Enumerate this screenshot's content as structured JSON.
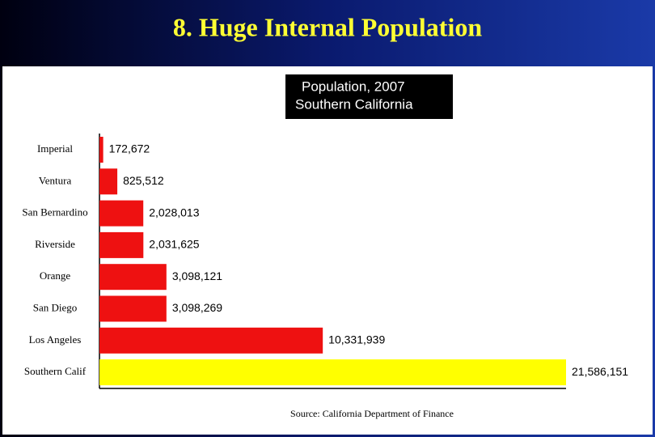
{
  "slide_title": "8. Huge Internal Population",
  "chart_data": {
    "type": "bar",
    "orientation": "horizontal",
    "title": "Population, 2007",
    "subtitle": "Southern California",
    "categories": [
      "Imperial",
      "Ventura",
      "San Bernardino",
      "Riverside",
      "Orange",
      "San Diego",
      "Los Angeles",
      "Southern Calif"
    ],
    "values": [
      172672,
      825512,
      2028013,
      2031625,
      3098121,
      3098269,
      10331939,
      21586151
    ],
    "value_labels": [
      "172,672",
      "825,512",
      "2,028,013",
      "2,031,625",
      "3,098,121",
      "3,098,269",
      "10,331,939",
      "21,586,151"
    ],
    "colors": [
      "#ee1111",
      "#ee1111",
      "#ee1111",
      "#ee1111",
      "#ee1111",
      "#ee1111",
      "#ee1111",
      "#ffff00"
    ],
    "source": "Source:  California Department of Finance"
  }
}
